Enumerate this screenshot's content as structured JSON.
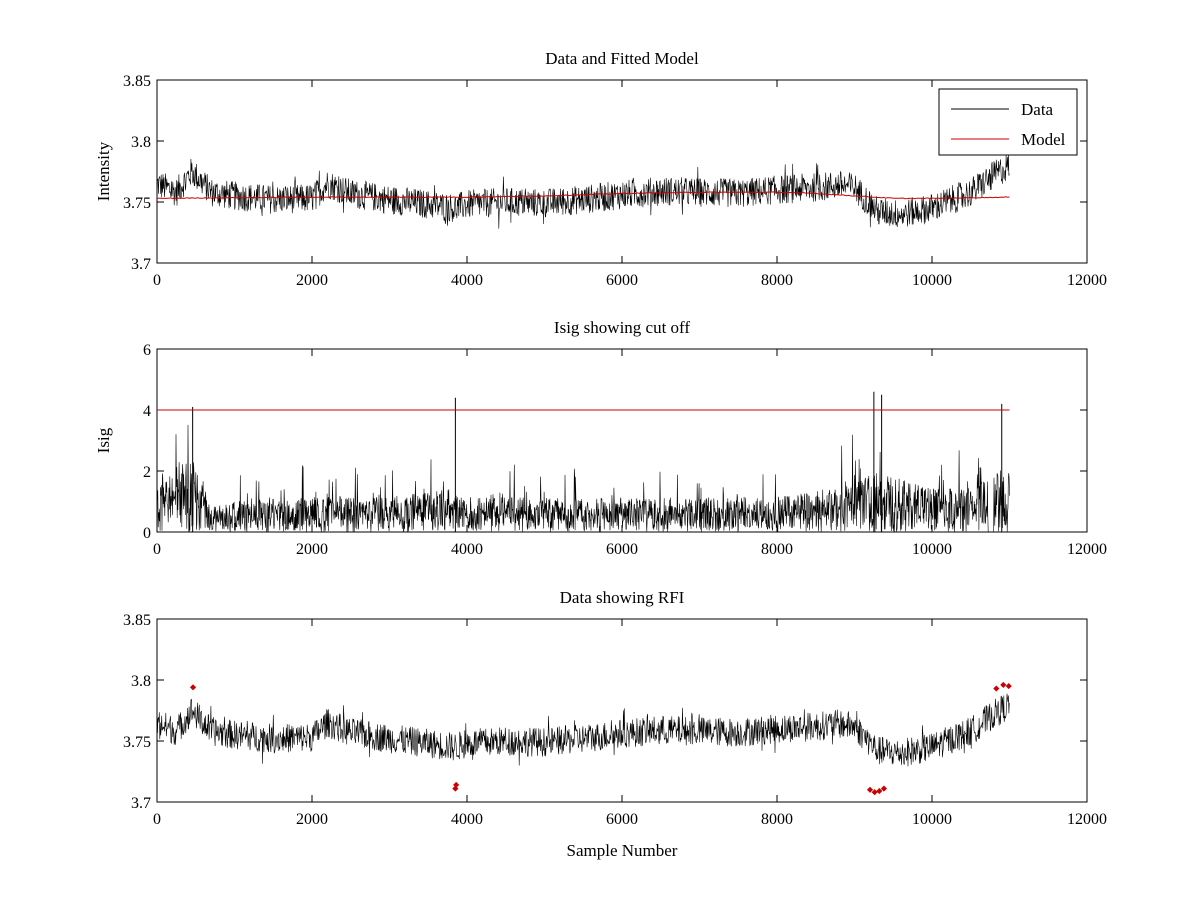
{
  "chart_data": [
    {
      "type": "line",
      "title": "Data and Fitted Model",
      "xlabel": "",
      "ylabel": "Intensity",
      "xlim": [
        0,
        12000
      ],
      "ylim": [
        3.7,
        3.85
      ],
      "xticks": [
        0,
        2000,
        4000,
        6000,
        8000,
        10000,
        12000
      ],
      "yticks": [
        3.7,
        3.75,
        3.8,
        3.85
      ],
      "ytick_labels": [
        "3.7",
        "3.75",
        "3.8",
        "3.85"
      ],
      "legend": {
        "position": "top-right",
        "entries": [
          "Data",
          "Model"
        ]
      },
      "series": [
        {
          "name": "Data",
          "color": "#000000",
          "x": [
            0,
            250,
            450,
            700,
            1000,
            1500,
            2000,
            2200,
            2500,
            3000,
            3500,
            3850,
            4000,
            4500,
            5000,
            5500,
            6000,
            6500,
            7000,
            7500,
            8000,
            8500,
            8800,
            9000,
            9300,
            9600,
            10000,
            10500,
            10800,
            11000
          ],
          "values": [
            3.765,
            3.758,
            3.775,
            3.758,
            3.755,
            3.752,
            3.753,
            3.765,
            3.757,
            3.752,
            3.748,
            3.745,
            3.748,
            3.75,
            3.749,
            3.752,
            3.756,
            3.759,
            3.758,
            3.757,
            3.76,
            3.762,
            3.764,
            3.762,
            3.742,
            3.74,
            3.745,
            3.758,
            3.772,
            3.78
          ],
          "noise_amplitude": 0.012
        },
        {
          "name": "Model",
          "color": "#cc0000",
          "x": [
            0,
            2000,
            4000,
            5000,
            6000,
            7000,
            8000,
            8500,
            9000,
            9500,
            10000,
            11000
          ],
          "values": [
            3.753,
            3.754,
            3.754,
            3.755,
            3.757,
            3.758,
            3.758,
            3.757,
            3.755,
            3.753,
            3.753,
            3.754
          ]
        }
      ]
    },
    {
      "type": "line",
      "title": "Isig showing cut off",
      "xlabel": "",
      "ylabel": "Isig",
      "xlim": [
        0,
        12000
      ],
      "ylim": [
        0,
        6
      ],
      "xticks": [
        0,
        2000,
        4000,
        6000,
        8000,
        10000,
        12000
      ],
      "yticks": [
        0,
        2,
        4,
        6
      ],
      "ytick_labels": [
        "0",
        "2",
        "4",
        "6"
      ],
      "cutoff": 4,
      "cutoff_color": "#cc0000",
      "series": [
        {
          "name": "Isig",
          "color": "#000000",
          "x": [
            0,
            250,
            450,
            700,
            1000,
            2000,
            3000,
            3850,
            4000,
            5000,
            6000,
            7000,
            8000,
            8800,
            9000,
            9300,
            9600,
            10000,
            10500,
            10800,
            11000
          ],
          "values": [
            1.4,
            1.2,
            1.8,
            0.6,
            0.7,
            0.8,
            0.8,
            1.0,
            0.8,
            0.8,
            0.8,
            0.8,
            0.8,
            1.0,
            1.1,
            1.4,
            1.2,
            1.0,
            1.0,
            1.3,
            1.6
          ],
          "spikes": [
            {
              "x": 460,
              "y": 4.1
            },
            {
              "x": 3850,
              "y": 4.4
            },
            {
              "x": 9250,
              "y": 4.6
            },
            {
              "x": 9350,
              "y": 4.5
            },
            {
              "x": 10900,
              "y": 4.2
            }
          ]
        }
      ]
    },
    {
      "type": "line",
      "title": "Data showing RFI",
      "xlabel": "Sample Number",
      "ylabel": "",
      "xlim": [
        0,
        12000
      ],
      "ylim": [
        3.7,
        3.85
      ],
      "xticks": [
        0,
        2000,
        4000,
        6000,
        8000,
        10000,
        12000
      ],
      "yticks": [
        3.7,
        3.75,
        3.8,
        3.85
      ],
      "ytick_labels": [
        "3.7",
        "3.75",
        "3.8",
        "3.85"
      ],
      "series": [
        {
          "name": "Data",
          "color": "#000000",
          "x": [
            0,
            250,
            450,
            700,
            1000,
            1500,
            2000,
            2200,
            2500,
            3000,
            3500,
            3850,
            4000,
            4500,
            5000,
            5500,
            6000,
            6500,
            7000,
            7500,
            8000,
            8500,
            8800,
            9000,
            9300,
            9600,
            10000,
            10500,
            10800,
            11000
          ],
          "values": [
            3.765,
            3.758,
            3.775,
            3.758,
            3.755,
            3.752,
            3.753,
            3.765,
            3.757,
            3.752,
            3.748,
            3.745,
            3.748,
            3.75,
            3.749,
            3.752,
            3.756,
            3.759,
            3.758,
            3.757,
            3.76,
            3.762,
            3.764,
            3.762,
            3.742,
            3.74,
            3.745,
            3.758,
            3.772,
            3.78
          ],
          "noise_amplitude": 0.012
        },
        {
          "name": "RFI",
          "color": "#cc0000",
          "marker": "point",
          "x": [
            465,
            3850,
            3860,
            9200,
            9260,
            9320,
            9380,
            10830,
            10920,
            10990
          ],
          "values": [
            3.794,
            3.711,
            3.714,
            3.71,
            3.708,
            3.709,
            3.711,
            3.793,
            3.796,
            3.795
          ]
        }
      ]
    }
  ]
}
